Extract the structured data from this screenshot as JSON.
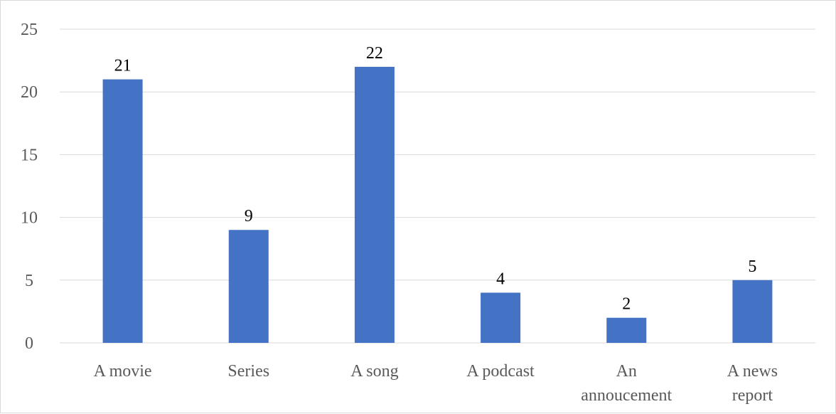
{
  "chart_data": {
    "type": "bar",
    "categories": [
      [
        "A movie"
      ],
      [
        "Series"
      ],
      [
        "A song"
      ],
      [
        "A podcast"
      ],
      [
        "An",
        "annoucement"
      ],
      [
        "A news",
        "report"
      ]
    ],
    "values": [
      21,
      9,
      22,
      4,
      2,
      5
    ],
    "data_labels": [
      "21",
      "9",
      "22",
      "4",
      "2",
      "5"
    ],
    "yticks": [
      "0",
      "5",
      "10",
      "15",
      "20",
      "25"
    ],
    "ylim": [
      0,
      25
    ],
    "grid": true,
    "colors": {
      "bar": "#4472C4",
      "grid": "#d9d9d9",
      "axis": "#d9d9d9"
    }
  }
}
